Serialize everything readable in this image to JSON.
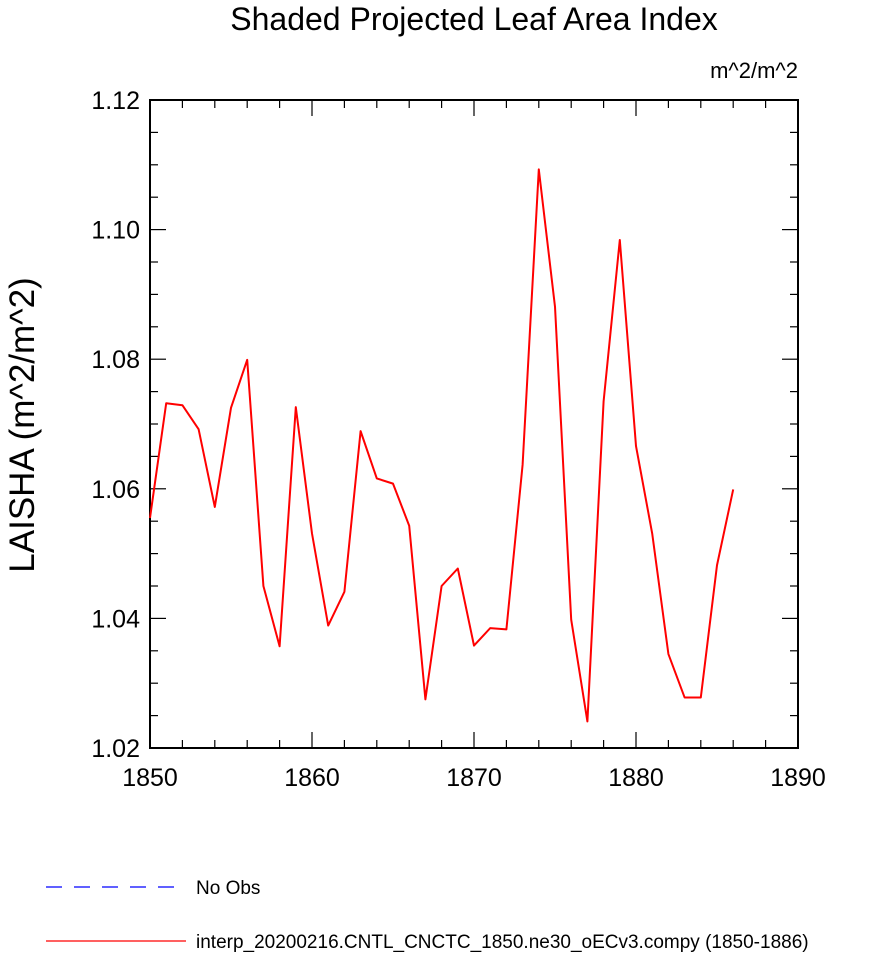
{
  "chart_data": {
    "type": "line",
    "title": "Shaded Projected Leaf Area Index",
    "units_label": "m^2/m^2",
    "ylabel": "LAISHA  (m^2/m^2)",
    "xlabel": "",
    "xlim": [
      1850,
      1890
    ],
    "ylim": [
      1.02,
      1.12
    ],
    "xticks": [
      "1850",
      "1860",
      "1870",
      "1880",
      "1890"
    ],
    "yticks": [
      "1.02",
      "1.04",
      "1.06",
      "1.08",
      "1.10",
      "1.12"
    ],
    "grid": false,
    "legend_position": "bottom",
    "series": [
      {
        "name": "No Obs",
        "color": "#0000ff",
        "dash": "dashed",
        "x": [],
        "values": []
      },
      {
        "name": "interp_20200216.CNTL_CNCTC_1850.ne30_oECv3.compy (1850-1886)",
        "color": "#ff0000",
        "dash": "solid",
        "x": [
          1850,
          1851,
          1852,
          1853,
          1854,
          1855,
          1856,
          1857,
          1858,
          1859,
          1860,
          1861,
          1862,
          1863,
          1864,
          1865,
          1866,
          1867,
          1868,
          1869,
          1870,
          1871,
          1872,
          1873,
          1874,
          1875,
          1876,
          1877,
          1878,
          1879,
          1880,
          1881,
          1882,
          1883,
          1884,
          1885,
          1886
        ],
        "values": [
          1.0555,
          1.0732,
          1.0729,
          1.0692,
          1.0572,
          1.0725,
          1.0799,
          1.045,
          1.0357,
          1.0726,
          1.0531,
          1.0389,
          1.0441,
          1.0689,
          1.0616,
          1.0608,
          1.0543,
          1.0275,
          1.045,
          1.0477,
          1.0358,
          1.0385,
          1.0383,
          1.0637,
          1.1093,
          1.0881,
          1.0398,
          1.0241,
          1.0735,
          1.0984,
          1.0666,
          1.0531,
          1.0345,
          1.0278,
          1.0278,
          1.0482,
          1.0599
        ]
      }
    ]
  }
}
